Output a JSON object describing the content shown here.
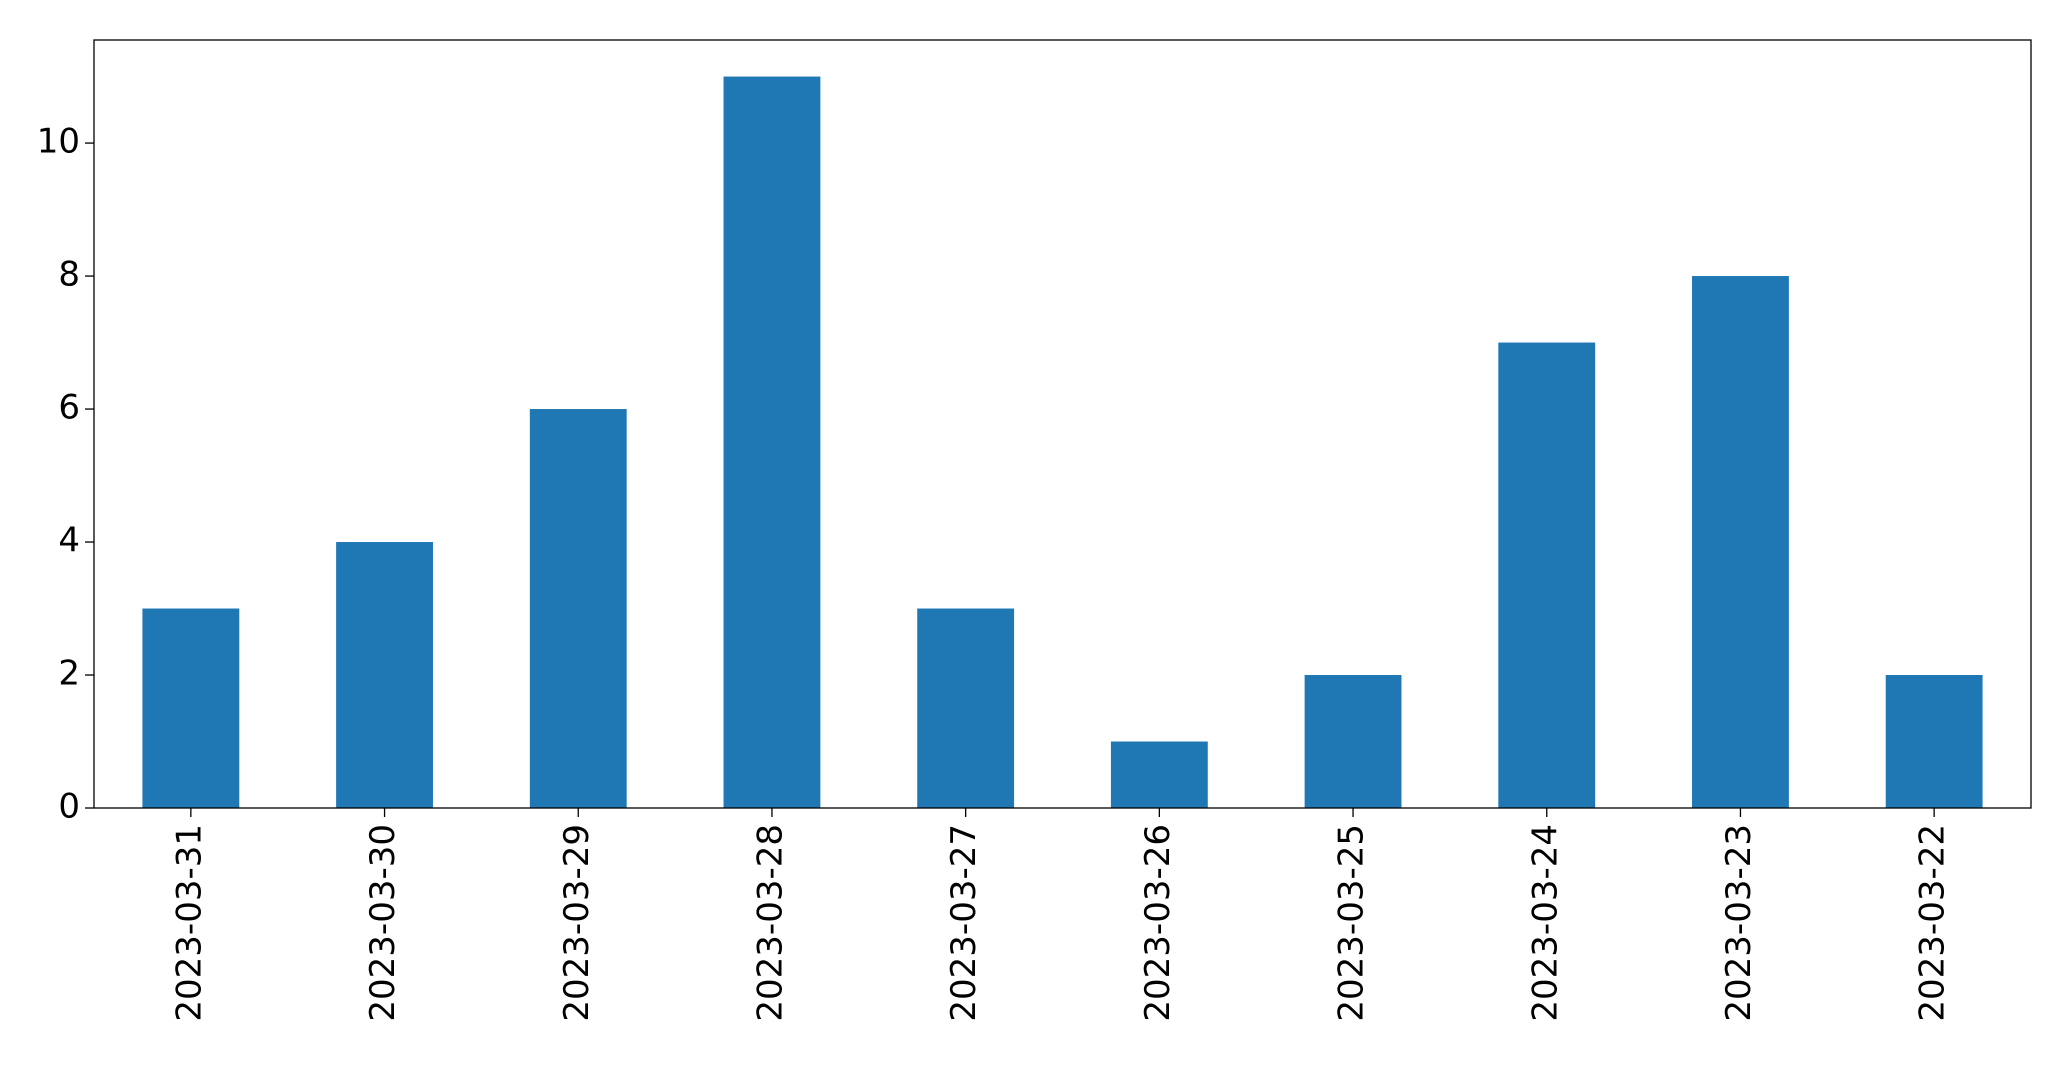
{
  "chart_data": {
    "type": "bar",
    "categories": [
      "2023-03-31",
      "2023-03-30",
      "2023-03-29",
      "2023-03-28",
      "2023-03-27",
      "2023-03-26",
      "2023-03-25",
      "2023-03-24",
      "2023-03-23",
      "2023-03-22"
    ],
    "values": [
      3,
      4,
      6,
      11,
      3,
      1,
      2,
      7,
      8,
      2
    ],
    "color": "#1f77b4",
    "ylim": [
      0,
      11.55
    ],
    "yticks": [
      0,
      2,
      4,
      6,
      8,
      10
    ],
    "grid": false
  }
}
